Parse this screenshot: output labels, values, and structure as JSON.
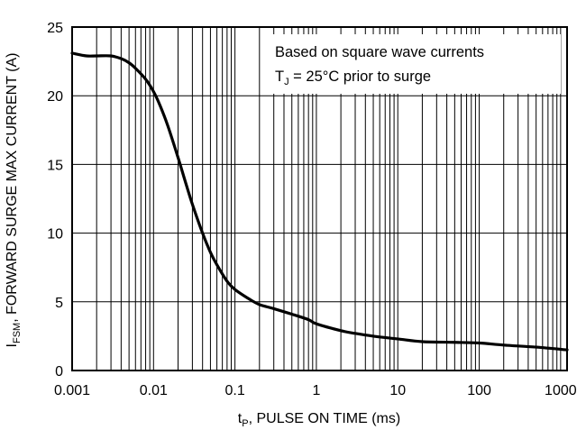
{
  "chart_data": {
    "type": "line",
    "x_scale": "log",
    "xlim": [
      0.001,
      1200
    ],
    "ylim": [
      0,
      25
    ],
    "grid": true,
    "x_ticks": [
      {
        "value": 0.001,
        "label": "0.001"
      },
      {
        "value": 0.01,
        "label": "0.01"
      },
      {
        "value": 0.1,
        "label": "0.1"
      },
      {
        "value": 1,
        "label": "1"
      },
      {
        "value": 10,
        "label": "10"
      },
      {
        "value": 100,
        "label": "100"
      },
      {
        "value": 1000,
        "label": "1000"
      }
    ],
    "y_ticks": [
      {
        "value": 0,
        "label": "0"
      },
      {
        "value": 5,
        "label": "5"
      },
      {
        "value": 10,
        "label": "10"
      },
      {
        "value": 15,
        "label": "15"
      },
      {
        "value": 20,
        "label": "20"
      },
      {
        "value": 25,
        "label": "25"
      }
    ],
    "xlabel": {
      "main": "t",
      "sub": "P",
      "rest": ", PULSE ON TIME (ms)"
    },
    "ylabel": {
      "main": "I",
      "sub": "FSM",
      "rest": ", FORWARD SURGE MAX CURRENT (A)"
    },
    "annotation": {
      "line1": "Based on square wave currents",
      "line2_main": "T",
      "line2_sub": "J",
      "line2_rest": " = 25°C prior to surge"
    },
    "series": [
      {
        "x": [
          0.001,
          0.0015,
          0.002,
          0.003,
          0.004,
          0.005,
          0.006,
          0.008,
          0.01,
          0.012,
          0.015,
          0.02,
          0.025,
          0.03,
          0.04,
          0.05,
          0.06,
          0.08,
          0.1,
          0.15,
          0.2,
          0.3,
          0.5,
          0.8,
          1,
          2,
          3,
          5,
          10,
          20,
          50,
          100,
          200,
          500,
          1200
        ],
        "y": [
          23.1,
          22.9,
          22.9,
          22.9,
          22.7,
          22.4,
          22.0,
          21.2,
          20.3,
          19.3,
          17.8,
          15.5,
          13.6,
          12.1,
          10.0,
          8.6,
          7.7,
          6.5,
          5.9,
          5.2,
          4.8,
          4.5,
          4.1,
          3.7,
          3.4,
          2.9,
          2.7,
          2.5,
          2.3,
          2.1,
          2.05,
          2.0,
          1.85,
          1.7,
          1.5
        ]
      }
    ]
  }
}
